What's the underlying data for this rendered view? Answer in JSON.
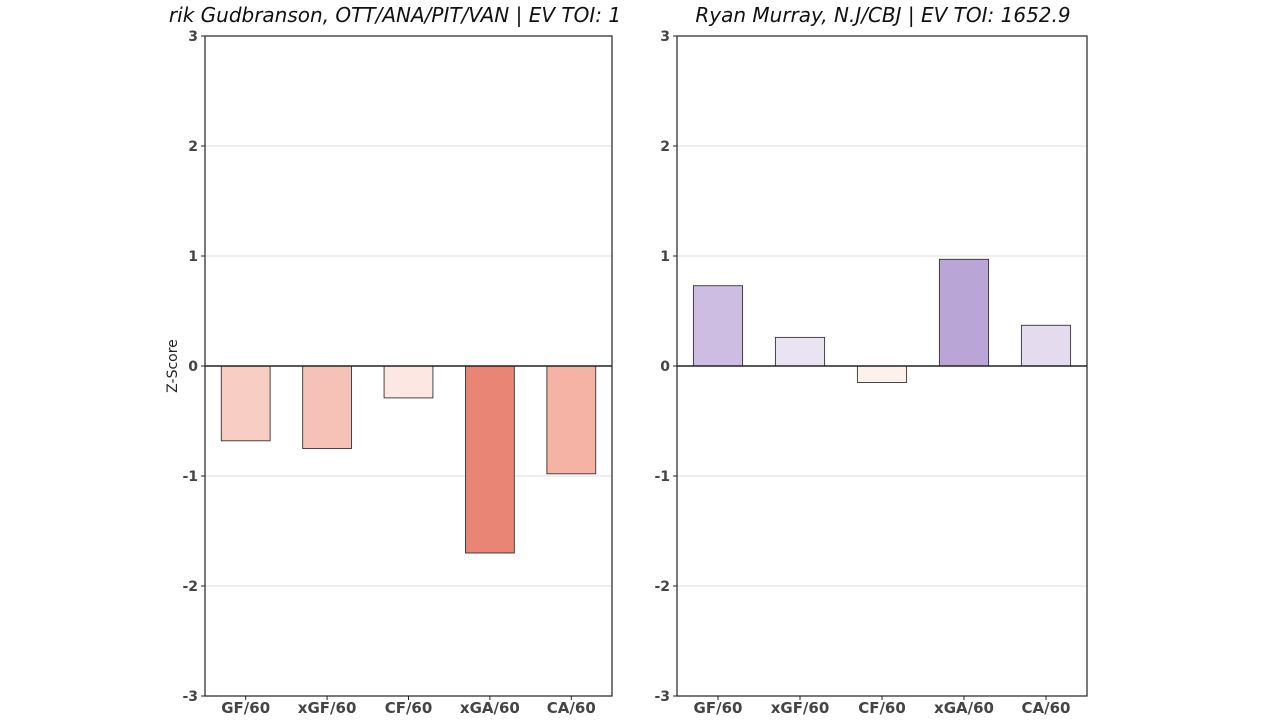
{
  "chart_data": [
    {
      "type": "bar",
      "title": "rik Gudbranson, OTT/ANA/PIT/VAN  |  EV TOI: 1",
      "ylabel": "Z-Score",
      "xlabel": "",
      "categories": [
        "GF/60",
        "xGF/60",
        "CF/60",
        "xGA/60",
        "CA/60"
      ],
      "values": [
        -0.68,
        -0.75,
        -0.29,
        -1.7,
        -0.98
      ],
      "bar_colors": [
        "#f8cdc3",
        "#f6c2b7",
        "#fde7e3",
        "#e88575",
        "#f4b3a5"
      ],
      "ylim": [
        -3,
        3
      ],
      "yticks": [
        3,
        2,
        1,
        0,
        -1,
        -2,
        -3
      ],
      "grid": true
    },
    {
      "type": "bar",
      "title": "Ryan Murray, N.J/CBJ  |  EV TOI: 1652.9",
      "ylabel": "",
      "xlabel": "",
      "categories": [
        "GF/60",
        "xGF/60",
        "CF/60",
        "xGA/60",
        "CA/60"
      ],
      "values": [
        0.73,
        0.26,
        -0.15,
        0.97,
        0.37
      ],
      "bar_colors": [
        "#cdbde2",
        "#e9e3f2",
        "#fdf1ec",
        "#b9a6d7",
        "#e4dbef"
      ],
      "ylim": [
        -3,
        3
      ],
      "yticks": [
        3,
        2,
        1,
        0,
        -1,
        -2,
        -3
      ],
      "grid": true
    }
  ]
}
